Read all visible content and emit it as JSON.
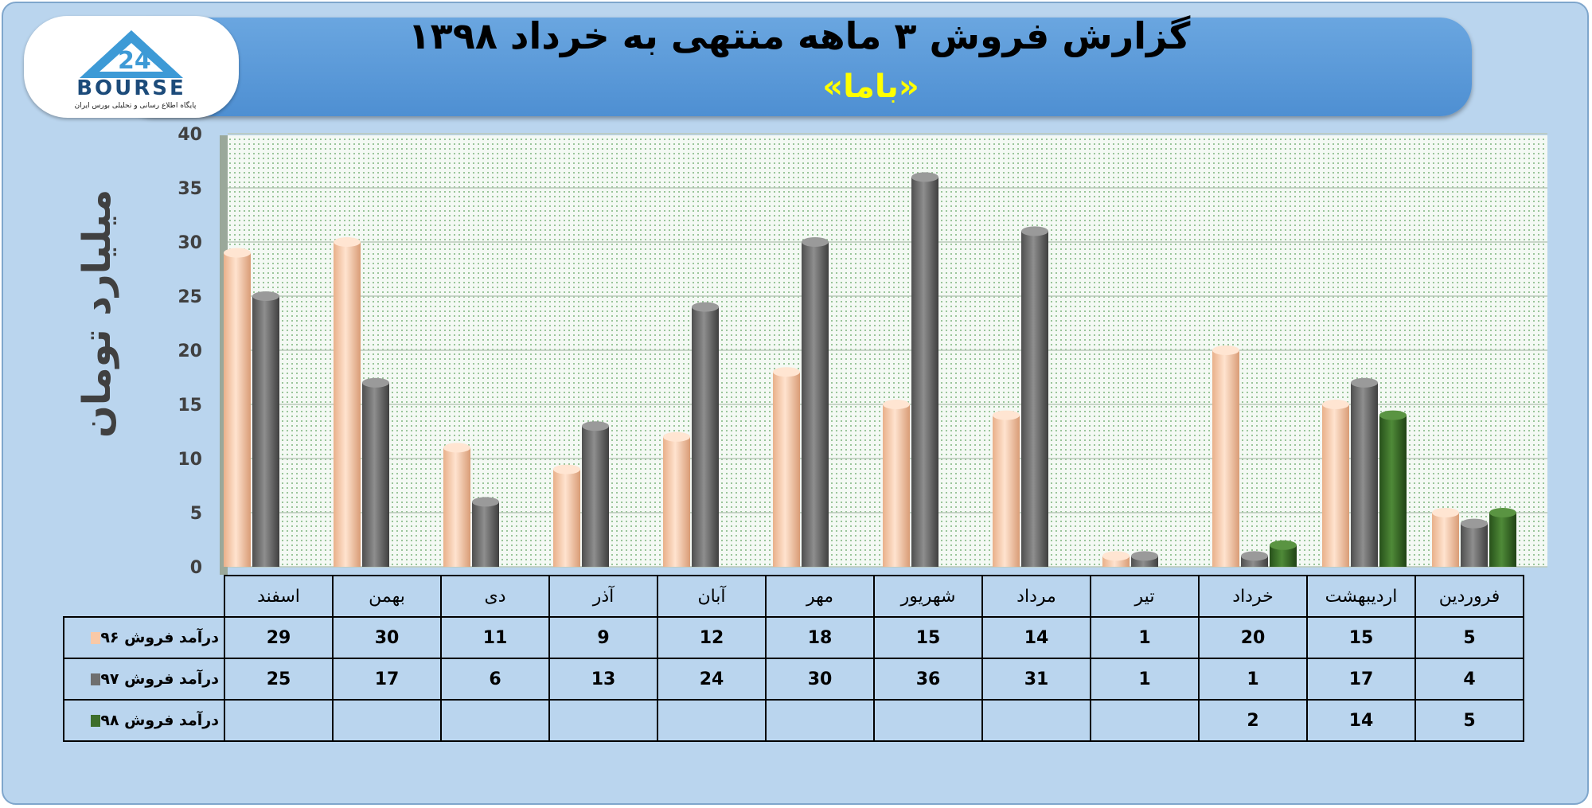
{
  "header": {
    "title": "گزارش فروش ۳ ماهه منتهی به خرداد ۱۳۹۸",
    "subtitle": "«باما»"
  },
  "logo": {
    "word": "BOURSE",
    "caption": "پایگاه اطلاع رسانی و تحلیلی بورس ایران"
  },
  "colors": {
    "series96": "#f9c9a7",
    "series97": "#6f6f6f",
    "series98": "#3d6e2b",
    "plot_background": "#f2f8f2",
    "header": "#5b9ad8",
    "frame": "#bad5ee"
  },
  "chart_data": {
    "type": "bar",
    "title": "گزارش فروش ۳ ماهه منتهی به خرداد ۱۳۹۸",
    "ylabel": "میلیارد تومان",
    "ylim": [
      0,
      40
    ],
    "yticks": [
      0,
      5,
      10,
      15,
      20,
      25,
      30,
      35,
      40
    ],
    "grid": true,
    "categories": [
      "فروردین",
      "اردیبهشت",
      "خرداد",
      "تیر",
      "مرداد",
      "شهریور",
      "مهر",
      "آبان",
      "آذر",
      "دی",
      "بهمن",
      "اسفند"
    ],
    "series": [
      {
        "name": "درآمد فروش ۹۶",
        "values": [
          5,
          15,
          20,
          1,
          14,
          15,
          18,
          12,
          9,
          11,
          30,
          29
        ]
      },
      {
        "name": "درآمد فروش ۹۷",
        "values": [
          4,
          17,
          1,
          1,
          31,
          36,
          30,
          24,
          13,
          6,
          17,
          25
        ]
      },
      {
        "name": "درآمد فروش ۹۸",
        "values": [
          5,
          14,
          2,
          null,
          null,
          null,
          null,
          null,
          null,
          null,
          null,
          null
        ]
      }
    ]
  }
}
